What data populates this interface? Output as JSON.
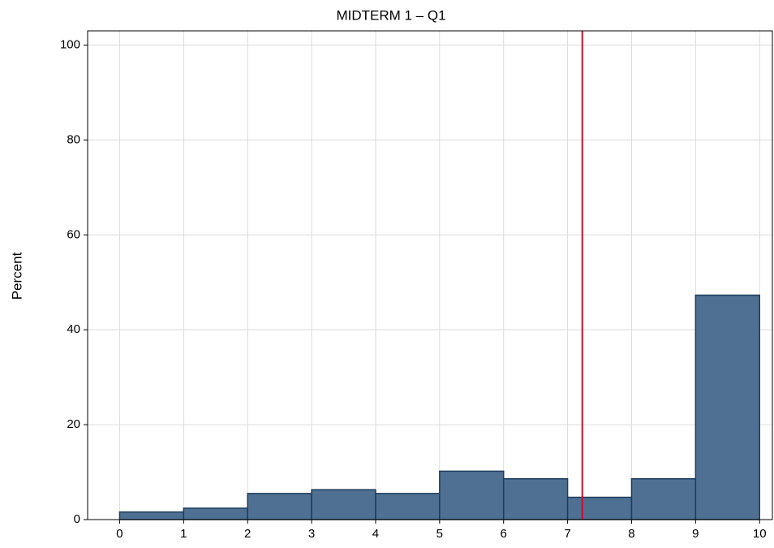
{
  "chart_data": {
    "type": "histogram",
    "title": "MIDTERM 1 – Q1",
    "y_label": "Percent",
    "bins": [
      0,
      1,
      2,
      3,
      4,
      5,
      6,
      7,
      8,
      9,
      10
    ],
    "values": [
      1.6,
      2.4,
      5.5,
      6.3,
      5.5,
      10.2,
      8.6,
      4.7,
      8.6,
      47.3
    ],
    "color": "#4f7092",
    "edge_color": "#1e3d5c",
    "xlim": [
      -0.5,
      10.2
    ],
    "xticks": [
      0,
      1,
      2,
      3,
      4,
      5,
      6,
      7,
      8,
      9,
      10
    ],
    "ylim": [
      0,
      103
    ],
    "yticks": [
      0,
      20,
      40,
      60,
      80,
      100
    ],
    "grid": true,
    "reference_line": {
      "x": 7.23,
      "color": "#c8102e"
    }
  }
}
